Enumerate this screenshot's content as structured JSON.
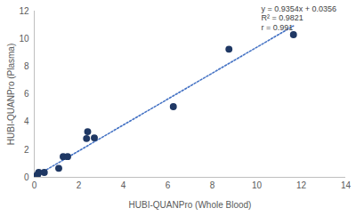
{
  "chart_data": {
    "type": "scatter",
    "x_label": "HUBI-QUANPro (Whole Blood)",
    "y_label": "HUBI-QUANPro (Plasma)",
    "x": [
      0.05,
      0.1,
      0.15,
      0.2,
      0.45,
      1.1,
      1.3,
      1.5,
      2.35,
      2.4,
      2.7,
      6.25,
      8.75,
      11.65
    ],
    "values": [
      0.05,
      0.1,
      0.2,
      0.35,
      0.35,
      0.65,
      1.5,
      1.5,
      2.8,
      3.3,
      2.85,
      5.1,
      9.25,
      10.3
    ],
    "color": "#1f3864",
    "marker": "circle",
    "trendline": {
      "slope": 0.9354,
      "intercept": 0.0356,
      "x": [
        0,
        11.65
      ],
      "color": "#4472c4",
      "line_style": "dotted"
    },
    "annotations": [
      "y = 0.9354x + 0.0356",
      "R² = 0.9821",
      "r = 0.991"
    ],
    "xlim": [
      0,
      14
    ],
    "xticks": [
      0,
      2,
      4,
      6,
      8,
      10,
      12,
      14
    ],
    "ylim": [
      0,
      12
    ],
    "yticks": [
      0,
      2,
      4,
      6,
      8,
      10,
      12
    ],
    "grid": false
  }
}
